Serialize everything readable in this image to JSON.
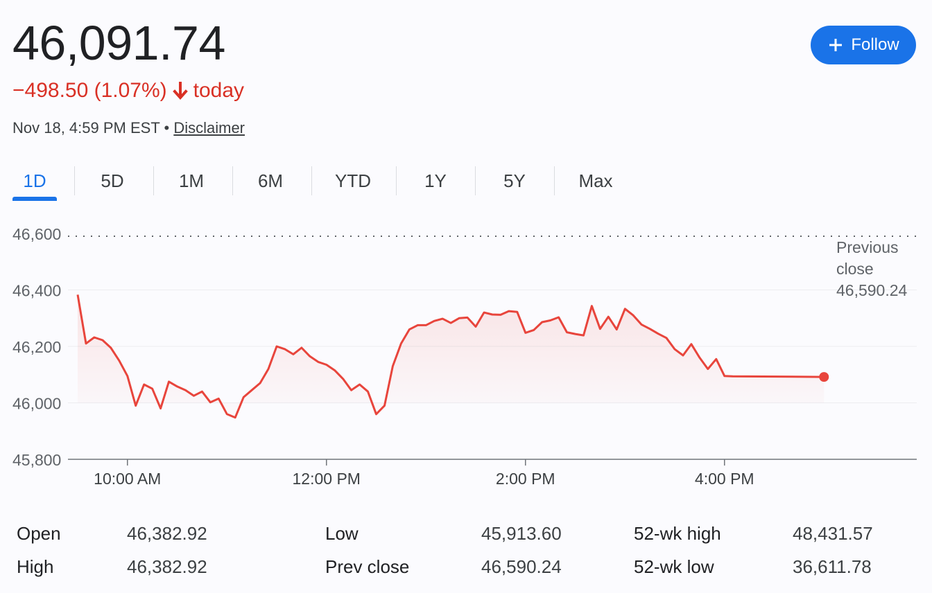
{
  "header": {
    "price": "46,091.74",
    "change_text": "−498.50 (1.07%)",
    "change_suffix": "today",
    "timestamp": "Nov 18, 4:59 PM EST",
    "separator": "•",
    "disclaimer_label": "Disclaimer",
    "follow_label": "Follow"
  },
  "tabs": [
    "1D",
    "5D",
    "1M",
    "6M",
    "YTD",
    "1Y",
    "5Y",
    "Max"
  ],
  "active_tab": "1D",
  "colors": {
    "negative": "#d93025",
    "accent": "#1a73e8",
    "line": "#e8453c"
  },
  "icons": {
    "follow": "plus-icon",
    "change": "arrow-down-icon"
  },
  "chart_data": {
    "type": "area",
    "x_ticks": [
      "10:00 AM",
      "12:00 PM",
      "2:00 PM",
      "4:00 PM"
    ],
    "y_ticks": [
      "46,600",
      "46,400",
      "46,200",
      "46,000",
      "45,800"
    ],
    "ylim": [
      45800,
      46600
    ],
    "xlim_minutes": [
      570,
      1020
    ],
    "reference_line": {
      "label_lines": [
        "Previous",
        "close",
        "46,590.24"
      ],
      "value": 46590.24,
      "style": "dotted"
    },
    "last_point_marker": true,
    "grid": "horizontal",
    "series": [
      {
        "x_minutes": [
          570,
          575,
          580,
          585,
          590,
          595,
          600,
          605,
          610,
          615,
          620,
          625,
          630,
          635,
          640,
          645,
          650,
          655,
          660,
          665,
          670,
          675,
          680,
          685,
          690,
          695,
          700,
          705,
          710,
          715,
          720,
          725,
          730,
          735,
          740,
          745,
          750,
          755,
          760,
          765,
          770,
          775,
          780,
          785,
          790,
          795,
          800,
          805,
          810,
          815,
          820,
          825,
          830,
          835,
          840,
          845,
          850,
          855,
          860,
          865,
          870,
          875,
          880,
          885,
          890,
          895,
          900,
          905,
          910,
          915,
          920,
          925,
          930,
          935,
          940,
          945,
          950,
          955,
          960,
          965,
          1020
        ],
        "values": [
          46383,
          46210,
          46232,
          46222,
          46195,
          46150,
          46095,
          45990,
          46065,
          46050,
          45980,
          46075,
          46058,
          46045,
          46025,
          46040,
          46002,
          46015,
          45960,
          45948,
          46020,
          46045,
          46070,
          46120,
          46200,
          46190,
          46172,
          46195,
          46165,
          46145,
          46135,
          46115,
          46085,
          46045,
          46065,
          46040,
          45960,
          45990,
          46130,
          46210,
          46260,
          46275,
          46275,
          46290,
          46298,
          46283,
          46300,
          46302,
          46270,
          46320,
          46313,
          46312,
          46325,
          46322,
          46248,
          46258,
          46286,
          46292,
          46303,
          46250,
          46244,
          46239,
          46343,
          46262,
          46305,
          46260,
          46333,
          46310,
          46277,
          46262,
          46245,
          46230,
          46190,
          46168,
          46208,
          46160,
          46120,
          46155,
          46095,
          46094,
          46091.74
        ]
      }
    ]
  },
  "stats": [
    {
      "label": "Open",
      "value": "46,382.92"
    },
    {
      "label": "High",
      "value": "46,382.92"
    },
    {
      "label": "Low",
      "value": "45,913.60"
    },
    {
      "label": "Prev close",
      "value": "46,590.24"
    },
    {
      "label": "52-wk high",
      "value": "48,431.57"
    },
    {
      "label": "52-wk low",
      "value": "36,611.78"
    }
  ]
}
